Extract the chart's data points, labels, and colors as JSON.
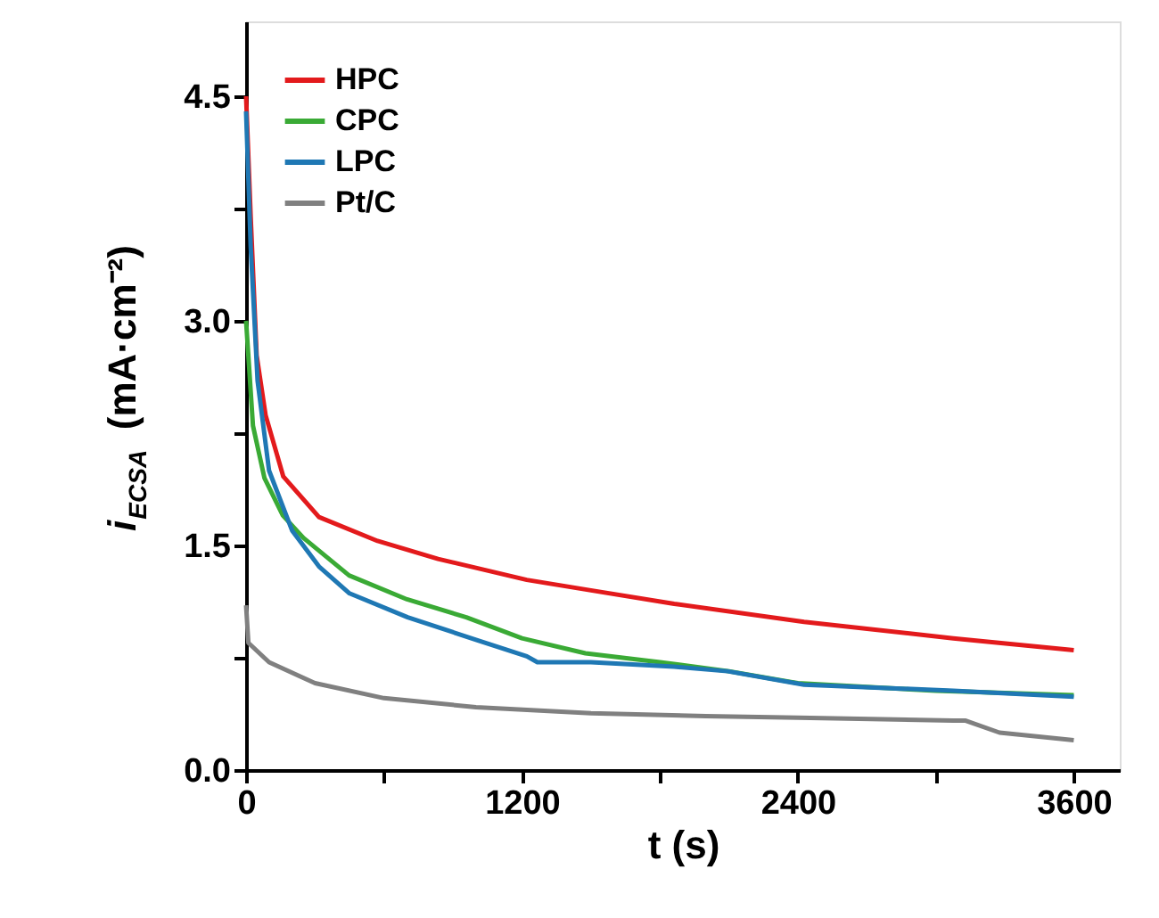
{
  "chart_data": {
    "type": "line",
    "xlabel": "t (s)",
    "ylabel": "i$_{ECSA}$ (mA·cm⁻²)",
    "xlim": [
      0,
      3800
    ],
    "ylim": [
      0,
      5
    ],
    "xticks": [
      0,
      {
        "value": 600,
        "label": null
      },
      1200,
      {
        "value": 1800,
        "label": null
      },
      2400,
      {
        "value": 3000,
        "label": null
      },
      3600
    ],
    "yticks": [
      {
        "value": 0,
        "label": "0.0"
      },
      {
        "value": 0.75,
        "label": null
      },
      {
        "value": 1.5,
        "label": "1.5"
      },
      {
        "value": 2.25,
        "label": null
      },
      {
        "value": 3.0,
        "label": "3.0"
      },
      {
        "value": 3.75,
        "label": null
      },
      {
        "value": 4.5,
        "label": "4.5"
      }
    ],
    "legend": "top left",
    "grid": false,
    "line_style": "solid",
    "series": [
      {
        "name": "HPC",
        "color": "#e31a1c",
        "x": [
          0,
          20,
          46,
          85,
          162,
          317,
          572,
          835,
          1221,
          1500,
          1862,
          2427,
          3076,
          3600
        ],
        "values": [
          4.5,
          3.7,
          2.77,
          2.37,
          1.96,
          1.69,
          1.53,
          1.41,
          1.27,
          1.2,
          1.11,
          0.99,
          0.88,
          0.8
        ]
      },
      {
        "name": "CPC",
        "color": "#3aaa35",
        "x": [
          0,
          30,
          80,
          160,
          250,
          448,
          700,
          958,
          1200,
          1476,
          1800,
          2100,
          2400,
          3000,
          3600
        ],
        "values": [
          3.0,
          2.3,
          1.95,
          1.7,
          1.55,
          1.3,
          1.14,
          1.02,
          0.88,
          0.78,
          0.72,
          0.66,
          0.58,
          0.53,
          0.5
        ]
      },
      {
        "name": "LPC",
        "color": "#1f78b4",
        "x": [
          0,
          20,
          50,
          100,
          200,
          317,
          450,
          703,
          1000,
          1221,
          1267,
          1500,
          1862,
          2094,
          2427,
          3076,
          3600
        ],
        "values": [
          4.4,
          3.5,
          2.6,
          2.0,
          1.6,
          1.36,
          1.18,
          1.02,
          0.87,
          0.76,
          0.72,
          0.72,
          0.69,
          0.66,
          0.57,
          0.53,
          0.49
        ]
      },
      {
        "name": "Pt/C",
        "color": "#808080",
        "x": [
          0,
          10,
          100,
          300,
          600,
          1000,
          1500,
          2000,
          2400,
          3076,
          3130,
          3277,
          3600
        ],
        "values": [
          1.1,
          0.85,
          0.72,
          0.58,
          0.48,
          0.42,
          0.38,
          0.36,
          0.35,
          0.33,
          0.33,
          0.25,
          0.2
        ]
      }
    ]
  }
}
